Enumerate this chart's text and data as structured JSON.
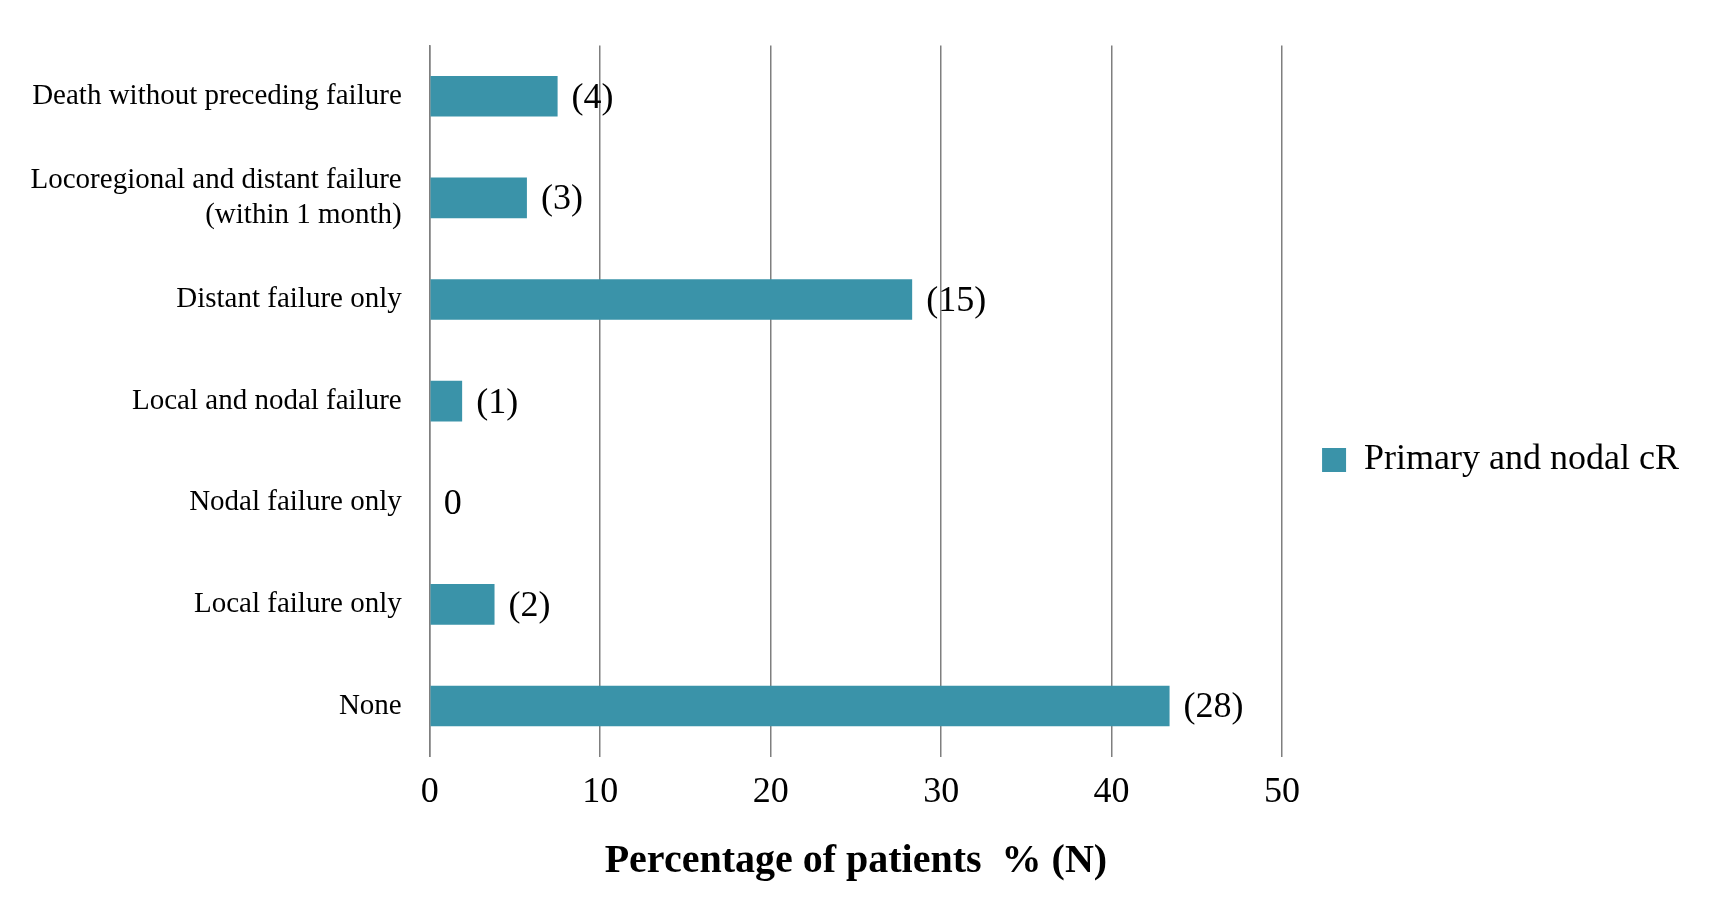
{
  "chart_data": {
    "type": "bar",
    "orientation": "horizontal",
    "xlabel": "Percentage of patients  % (N)",
    "categories": [
      "Death without preceding failure",
      "Locoregional and distant failure (within 1 month)",
      "Distant failure only",
      "Local and nodal failure",
      "Nodal failure only",
      "Local failure only",
      "None"
    ],
    "series": [
      {
        "name": "Primary and nodal cR",
        "color": "#3a93a9",
        "values": [
          7.5,
          5.7,
          28.3,
          1.9,
          0,
          3.8,
          43.4
        ]
      }
    ],
    "annotations": [
      {
        "text": "(4)",
        "x": 7.5,
        "y": "Death without preceding failure"
      },
      {
        "text": "(3)",
        "x": 5.7,
        "y": "Locoregional and distant failure (within 1 month)"
      },
      {
        "text": "(15)",
        "x": 28.3,
        "y": "Distant failure only"
      },
      {
        "text": "(1)",
        "x": 1.9,
        "y": "Local and nodal failure"
      },
      {
        "text": "0",
        "x": 0,
        "y": "Nodal failure only"
      },
      {
        "text": "(2)",
        "x": 3.8,
        "y": "Local failure only"
      },
      {
        "text": "(28)",
        "x": 43.4,
        "y": "None"
      }
    ],
    "xlim": [
      0,
      50
    ],
    "xticks": [
      0,
      10,
      20,
      30,
      40,
      50
    ],
    "grid": "x",
    "legend": "right"
  }
}
